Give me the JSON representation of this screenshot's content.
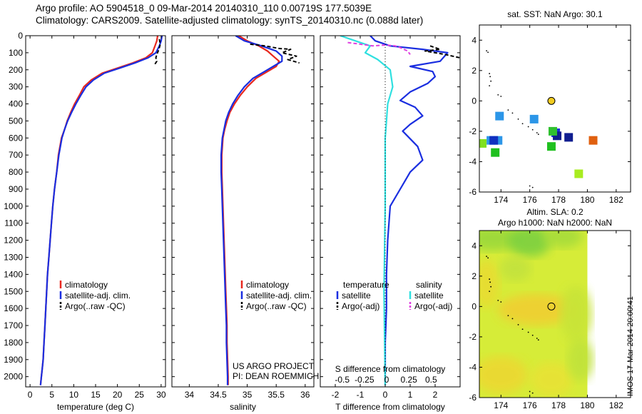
{
  "header": {
    "line1": "Argo profile: AO 5904518_0 09-Mar-2014 20140310_110 0.00719S 177.5039E",
    "line2": "Climatology: CARS2009. Satellite-adjusted climatology: synTS_20140310.nc (0.088d later)"
  },
  "stamp": "IMOS 17-Mar-2014 20:00:41",
  "chart_data": [
    {
      "id": "temperature",
      "type": "line",
      "xlabel": "temperature (deg C)",
      "xlim": [
        -1,
        31
      ],
      "xticks": [
        0,
        5,
        10,
        15,
        20,
        25,
        30
      ],
      "ylim": [
        0,
        2060
      ],
      "yticks": [
        0,
        100,
        200,
        300,
        400,
        500,
        600,
        700,
        800,
        900,
        1000,
        1100,
        1200,
        1300,
        1400,
        1500,
        1600,
        1700,
        1800,
        1900,
        2000
      ],
      "legend": [
        "climatology",
        "satellite-adj. clim.",
        "Argo(..raw -QC)"
      ],
      "series": [
        {
          "name": "climatology",
          "color": "#e8281e",
          "x": [
            29.2,
            29.0,
            28.6,
            28.0,
            26.5,
            23.5,
            20.0,
            16.5,
            14.0,
            12.3,
            11.3,
            10.2,
            9.3,
            8.5,
            7.9,
            7.2,
            6.5,
            6.1,
            5.6,
            5.2,
            4.9,
            4.6,
            4.3,
            4.0,
            3.8,
            3.6,
            3.4,
            3.2,
            3.0,
            2.8,
            2.6,
            2.4
          ],
          "y": [
            0,
            30,
            60,
            100,
            130,
            160,
            190,
            220,
            260,
            300,
            350,
            400,
            450,
            500,
            550,
            600,
            700,
            800,
            900,
            1000,
            1100,
            1200,
            1300,
            1400,
            1500,
            1600,
            1700,
            1800,
            1900,
            1950,
            2000,
            2050
          ]
        },
        {
          "name": "satellite-adj. clim.",
          "color": "#1a2ee0",
          "x": [
            30.2,
            30.0,
            29.6,
            28.8,
            27.0,
            24.0,
            20.5,
            17.0,
            14.5,
            12.8,
            11.6,
            10.5,
            9.5,
            8.6,
            7.9,
            7.3,
            6.6,
            6.1,
            5.6,
            5.2,
            4.9,
            4.6,
            4.3,
            4.0,
            3.8,
            3.6,
            3.4,
            3.2,
            3.0,
            2.8,
            2.6,
            2.4
          ],
          "y": [
            0,
            30,
            60,
            100,
            130,
            160,
            190,
            220,
            260,
            300,
            350,
            400,
            450,
            500,
            550,
            600,
            700,
            800,
            900,
            1000,
            1100,
            1200,
            1300,
            1400,
            1500,
            1600,
            1700,
            1800,
            1900,
            1950,
            2000,
            2050
          ]
        },
        {
          "name": "Argo(..raw -QC)",
          "color": "#000000",
          "dashed": true,
          "x": [
            29.6,
            29.8,
            29.5,
            29.0,
            28.8,
            29.0,
            28.5
          ],
          "y": [
            20,
            50,
            80,
            110,
            130,
            150,
            170
          ]
        }
      ]
    },
    {
      "id": "salinity",
      "type": "line",
      "xlabel": "salinity",
      "xlim": [
        33.7,
        36.15
      ],
      "xticks": [
        34,
        34.5,
        35,
        35.5,
        36
      ],
      "ylim": [
        0,
        2060
      ],
      "legend": [
        "climatology",
        "satellite-adj. clim.",
        "Argo(..raw -QC)"
      ],
      "annotation": [
        "US ARGO PROJECT",
        "PI: DEAN ROEMMICH"
      ],
      "series": [
        {
          "name": "climatology",
          "color": "#e8281e",
          "x": [
            34.85,
            35.0,
            35.2,
            35.35,
            35.45,
            35.55,
            35.5,
            35.35,
            35.15,
            35.0,
            34.88,
            34.78,
            34.7,
            34.65,
            34.61,
            34.58,
            34.56,
            34.56,
            34.57,
            34.58,
            34.59,
            34.6,
            34.61,
            34.62,
            34.63,
            34.64,
            34.65,
            34.65,
            34.66,
            34.67,
            34.67
          ],
          "y": [
            0,
            30,
            60,
            90,
            120,
            150,
            180,
            210,
            250,
            300,
            350,
            400,
            450,
            500,
            550,
            600,
            700,
            800,
            900,
            1000,
            1100,
            1200,
            1300,
            1400,
            1500,
            1600,
            1700,
            1800,
            1900,
            2000,
            2050
          ]
        },
        {
          "name": "satellite-adj. clim.",
          "color": "#1a2ee0",
          "x": [
            34.8,
            34.95,
            35.25,
            35.5,
            35.6,
            35.6,
            35.45,
            35.3,
            35.1,
            34.95,
            34.84,
            34.75,
            34.68,
            34.63,
            34.6,
            34.57,
            34.55,
            34.55,
            34.56,
            34.57,
            34.58,
            34.59,
            34.6,
            34.61,
            34.62,
            34.63,
            34.64,
            34.64,
            34.65,
            34.66,
            34.66
          ],
          "y": [
            0,
            30,
            60,
            90,
            120,
            150,
            180,
            210,
            250,
            300,
            350,
            400,
            450,
            500,
            550,
            600,
            700,
            800,
            900,
            1000,
            1100,
            1200,
            1300,
            1400,
            1500,
            1600,
            1700,
            1800,
            1900,
            2000,
            2050
          ]
        },
        {
          "name": "Argo(..raw -QC)",
          "color": "#000000",
          "dashed": true,
          "x": [
            35.05,
            35.3,
            35.55,
            35.75,
            35.6,
            35.85,
            35.7,
            35.9
          ],
          "y": [
            50,
            60,
            75,
            80,
            100,
            120,
            140,
            160
          ]
        }
      ]
    },
    {
      "id": "difference",
      "type": "line",
      "xlabel": "T difference from climatology",
      "x2label": "S difference from climatology",
      "xlim": [
        -2.6,
        3.0
      ],
      "xticks": [
        -2,
        -1,
        0,
        1,
        2
      ],
      "x2ticks": [
        -0.5,
        -0.25,
        0,
        0.25,
        0.5
      ],
      "ylim": [
        0,
        2060
      ],
      "legend_headers": [
        "temperature",
        "salinity"
      ],
      "legend": [
        "satellite",
        "Argo(-adj)",
        "satellite",
        "Argo(-adj)"
      ],
      "series": [
        {
          "name": "T satellite",
          "color": "#1a2ee0",
          "x": [
            -0.6,
            -0.4,
            0.2,
            1.5,
            2.5,
            2.2,
            1.0,
            1.9,
            2.0,
            1.7,
            1.0,
            0.6,
            1.2,
            1.5,
            1.0,
            0.7,
            1.3,
            1.5,
            1.0,
            0.6,
            0.2,
            0.1,
            0.05,
            0.05,
            0.0,
            0.0
          ],
          "y": [
            0,
            30,
            60,
            80,
            100,
            150,
            180,
            210,
            240,
            280,
            330,
            380,
            420,
            470,
            520,
            560,
            650,
            730,
            800,
            900,
            1000,
            1200,
            1400,
            1600,
            1800,
            2050
          ]
        },
        {
          "name": "T Argo(-adj)",
          "color": "#000000",
          "dashed": true,
          "x": [
            1.8,
            2.2,
            1.6,
            2.0,
            2.4,
            3.0
          ],
          "y": [
            60,
            80,
            90,
            100,
            110,
            130
          ]
        },
        {
          "name": "S satellite",
          "color": "#30e0e0",
          "x": [
            -1.8,
            -1.2,
            -0.6,
            -0.8,
            -0.3,
            0.2,
            0.3,
            0.1,
            0.05,
            0.0,
            0.0,
            0.0,
            -0.05,
            0.0
          ],
          "y": [
            0,
            30,
            60,
            100,
            140,
            200,
            300,
            400,
            500,
            600,
            800,
            1000,
            1500,
            2050
          ]
        },
        {
          "name": "S Argo(-adj)",
          "color": "#e040e0",
          "dashed": true,
          "x": [
            -1.5,
            -1.0,
            -0.5,
            0.0,
            0.4,
            0.6,
            0.9,
            1.0
          ],
          "y": [
            40,
            50,
            60,
            55,
            60,
            70,
            90,
            110
          ]
        }
      ]
    },
    {
      "id": "sst-map",
      "type": "scatter",
      "title": "sat. SST: NaN Argo: 30.1",
      "xlim": [
        172.5,
        183
      ],
      "ylim": [
        -6,
        5
      ],
      "xticks": [
        174,
        176,
        178,
        180,
        182
      ],
      "yticks": [
        4,
        2,
        0,
        -2,
        -4,
        -6
      ],
      "float_position": {
        "lon": 177.5,
        "lat": 0.0
      },
      "squares": [
        {
          "lon": 173.9,
          "lat": -1.0,
          "color": "#2c96e8"
        },
        {
          "lon": 176.3,
          "lat": -1.2,
          "color": "#2c96e8"
        },
        {
          "lon": 173.3,
          "lat": -2.6,
          "color": "#2c96e8"
        },
        {
          "lon": 173.8,
          "lat": -2.6,
          "color": "#2c96e8"
        },
        {
          "lon": 173.5,
          "lat": -2.6,
          "color": "#1030c0"
        },
        {
          "lon": 177.8,
          "lat": -2.1,
          "color": "#1a2ee0"
        },
        {
          "lon": 177.9,
          "lat": -2.3,
          "color": "#101e90"
        },
        {
          "lon": 178.7,
          "lat": -2.4,
          "color": "#101e90"
        },
        {
          "lon": 177.6,
          "lat": -2.0,
          "color": "#30c030"
        },
        {
          "lon": 177.5,
          "lat": -3.0,
          "color": "#20c020"
        },
        {
          "lon": 173.6,
          "lat": -3.4,
          "color": "#20c020"
        },
        {
          "lon": 172.7,
          "lat": -2.8,
          "color": "#80e020"
        },
        {
          "lon": 179.4,
          "lat": -4.8,
          "color": "#a8ec20"
        },
        {
          "lon": 180.4,
          "lat": -2.6,
          "color": "#e06010"
        }
      ]
    },
    {
      "id": "sla-map",
      "type": "heatmap",
      "title": "Altim. SLA: 0.2",
      "subtitle": "Argo h1000: NaN h2000: NaN",
      "xlim": [
        172.5,
        183
      ],
      "ylim": [
        -6,
        5
      ],
      "xticks": [
        174,
        176,
        178,
        180,
        182
      ],
      "yticks": [
        4,
        2,
        0,
        -2,
        -4,
        -6
      ],
      "data_lon_range": [
        172.5,
        180
      ],
      "float_position": {
        "lon": 177.5,
        "lat": 0.0
      }
    }
  ]
}
